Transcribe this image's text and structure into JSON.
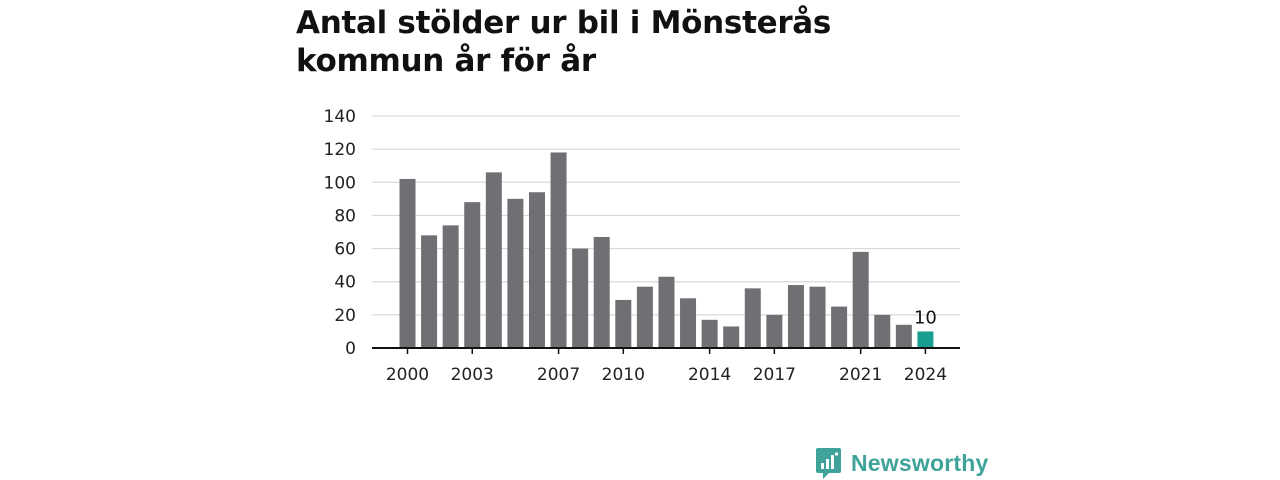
{
  "colors": {
    "bar": "#707074",
    "highlight": "#1a9e8f",
    "grid": "#d9d9d9",
    "axis": "#111111",
    "brand": "#3fa39a"
  },
  "brand": {
    "name": "Newsworthy",
    "icon": "newsworthy-logo-icon"
  },
  "chart_data": {
    "type": "bar",
    "title": "Antal stölder ur bil i Mönsterås kommun år för år",
    "xlabel": "",
    "ylabel": "",
    "ylim": [
      0,
      140
    ],
    "yticks": [
      0,
      20,
      40,
      60,
      80,
      100,
      120,
      140
    ],
    "grid": true,
    "categories": [
      "2000",
      "2001",
      "2002",
      "2003",
      "2004",
      "2005",
      "2006",
      "2007",
      "2008",
      "2009",
      "2010",
      "2011",
      "2012",
      "2013",
      "2014",
      "2015",
      "2016",
      "2017",
      "2018",
      "2019",
      "2020",
      "2021",
      "2022",
      "2023",
      "2024"
    ],
    "values": [
      102,
      68,
      74,
      88,
      106,
      90,
      94,
      118,
      60,
      67,
      29,
      37,
      43,
      30,
      17,
      13,
      36,
      20,
      38,
      37,
      25,
      58,
      20,
      14,
      10
    ],
    "xtick_labels": [
      "2000",
      "2003",
      "2007",
      "2010",
      "2014",
      "2017",
      "2021",
      "2024"
    ],
    "highlight_category": "2024",
    "data_labels": [
      {
        "category": "2024",
        "text": "10"
      }
    ]
  }
}
